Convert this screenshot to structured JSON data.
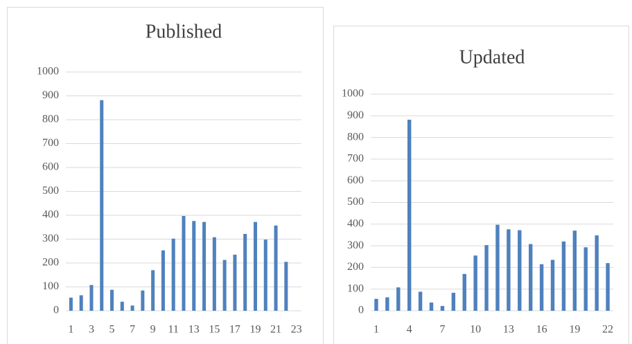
{
  "chart_data": [
    {
      "type": "bar",
      "title": "Published",
      "color": "#4f81bd",
      "grid": true,
      "categories": [
        "1",
        null,
        "3",
        null,
        "5",
        null,
        "7",
        null,
        "9",
        null,
        "11",
        null,
        "13",
        null,
        "15",
        null,
        "17",
        null,
        "19",
        null,
        "21",
        null,
        "23"
      ],
      "values": [
        55,
        65,
        108,
        882,
        88,
        38,
        22,
        85,
        170,
        253,
        302,
        397,
        376,
        372,
        308,
        213,
        235,
        322,
        372,
        298,
        357,
        205,
        null
      ],
      "ylim": [
        0,
        1000
      ],
      "yticks": [
        0,
        100,
        200,
        300,
        400,
        500,
        600,
        700,
        800,
        900,
        1000
      ]
    },
    {
      "type": "bar",
      "title": "Updated",
      "color": "#4f81bd",
      "grid": true,
      "categories": [
        "1",
        null,
        null,
        "4",
        null,
        null,
        "7",
        null,
        null,
        "10",
        null,
        null,
        "13",
        null,
        null,
        "16",
        null,
        null,
        "19",
        null,
        null,
        "22"
      ],
      "values": [
        55,
        62,
        108,
        882,
        88,
        38,
        22,
        83,
        170,
        255,
        303,
        397,
        376,
        372,
        308,
        215,
        235,
        320,
        370,
        293,
        348,
        220
      ],
      "ylim": [
        0,
        1000
      ],
      "yticks": [
        0,
        100,
        200,
        300,
        400,
        500,
        600,
        700,
        800,
        900,
        1000
      ]
    }
  ]
}
